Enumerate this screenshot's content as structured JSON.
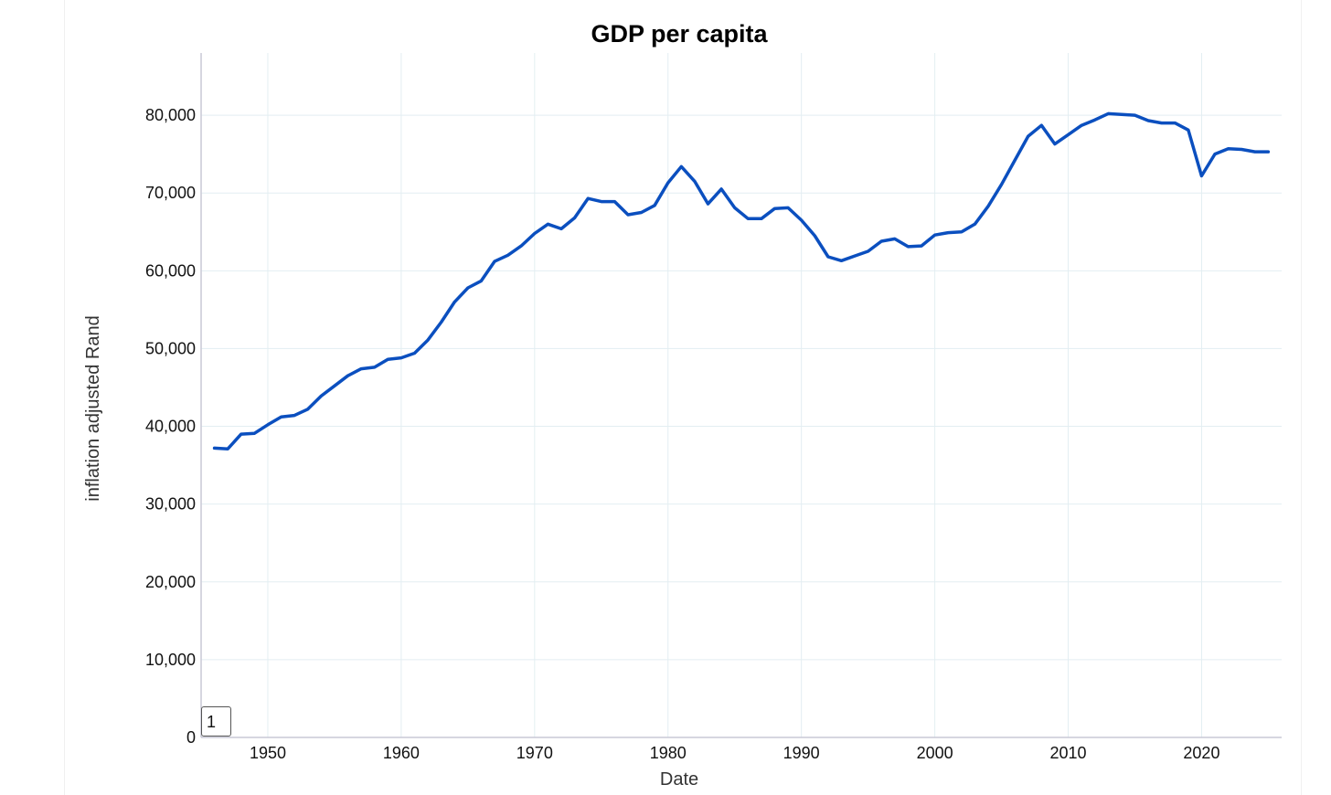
{
  "chart_data": {
    "type": "line",
    "title": "GDP per capita",
    "xlabel": "Date",
    "ylabel": "inflation adjusted Rand",
    "xlim": [
      1945,
      2026
    ],
    "ylim": [
      0,
      88000
    ],
    "x_ticks": [
      "1950",
      "1960",
      "1970",
      "1980",
      "1990",
      "2000",
      "2010",
      "2020"
    ],
    "y_ticks": [
      "0",
      "10,000",
      "20,000",
      "30,000",
      "40,000",
      "50,000",
      "60,000",
      "70,000",
      "80,000"
    ],
    "grid": true,
    "line_color": "#0b4fbf",
    "series": [
      {
        "x": [
          1946,
          1947,
          1948,
          1949,
          1950,
          1951,
          1952,
          1953,
          1954,
          1955,
          1956,
          1957,
          1958,
          1959,
          1960,
          1961,
          1962,
          1963,
          1964,
          1965,
          1966,
          1967,
          1968,
          1969,
          1970,
          1971,
          1972,
          1973,
          1974,
          1975,
          1976,
          1977,
          1978,
          1979,
          1980,
          1981,
          1982,
          1983,
          1984,
          1985,
          1986,
          1987,
          1988,
          1989,
          1990,
          1991,
          1992,
          1993,
          1994,
          1995,
          1996,
          1997,
          1998,
          1999,
          2000,
          2001,
          2002,
          2003,
          2004,
          2005,
          2006,
          2007,
          2008,
          2009,
          2010,
          2011,
          2012,
          2013,
          2014,
          2015,
          2016,
          2017,
          2018,
          2019,
          2020,
          2021,
          2022,
          2023,
          2024,
          2025
        ],
        "values": [
          37200,
          37100,
          39000,
          39100,
          40200,
          41200,
          41400,
          42200,
          43900,
          45200,
          46500,
          47400,
          47600,
          48600,
          48800,
          49400,
          51100,
          53400,
          56000,
          57800,
          58700,
          61200,
          62000,
          63200,
          64800,
          66000,
          65400,
          66800,
          69300,
          68900,
          68900,
          67200,
          67500,
          68400,
          71300,
          73400,
          71500,
          68600,
          70500,
          68100,
          66700,
          66700,
          68000,
          68100,
          66500,
          64500,
          61800,
          61300,
          61900,
          62500,
          63800,
          64100,
          63100,
          63200,
          64600,
          64900,
          65000,
          66000,
          68300,
          71100,
          74200,
          77300,
          78700,
          76300,
          77500,
          78700,
          79400,
          80200,
          80100,
          80000,
          79300,
          79000,
          79000,
          78100,
          72200,
          75000,
          75700,
          75600,
          75300,
          75300
        ]
      }
    ]
  },
  "page_box": {
    "value": "1"
  }
}
